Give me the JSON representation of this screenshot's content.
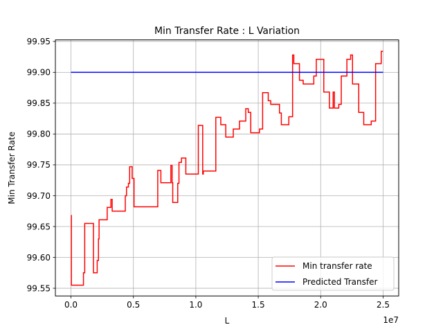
{
  "chart_data": {
    "type": "line",
    "title": "Min Transfer Rate : L Variation",
    "xlabel": "L",
    "ylabel": "Min Transfer Rate",
    "x_offset_label": "1e7",
    "xlim": [
      -1250000,
      26250000
    ],
    "ylim": [
      99.5375,
      99.9525
    ],
    "x_ticks": [
      0,
      5000000,
      10000000,
      15000000,
      20000000,
      25000000
    ],
    "x_tick_labels": [
      "0.0",
      "0.5",
      "1.0",
      "1.5",
      "2.0",
      "2.5"
    ],
    "y_ticks": [
      99.55,
      99.6,
      99.65,
      99.7,
      99.75,
      99.8,
      99.85,
      99.9,
      99.95
    ],
    "y_tick_labels": [
      "99.55",
      "99.60",
      "99.65",
      "99.70",
      "99.75",
      "99.80",
      "99.85",
      "99.90",
      "99.95"
    ],
    "grid": true,
    "legend_position": "lower right",
    "series": [
      {
        "name": "Min transfer rate",
        "color": "#ff0000",
        "step": true,
        "points": [
          [
            0,
            99.668
          ],
          [
            30000,
            99.555
          ],
          [
            1000000,
            99.575
          ],
          [
            1100000,
            99.655
          ],
          [
            1800000,
            99.575
          ],
          [
            2100000,
            99.595
          ],
          [
            2200000,
            99.63
          ],
          [
            2250000,
            99.661
          ],
          [
            2900000,
            99.681
          ],
          [
            3200000,
            99.694
          ],
          [
            3300000,
            99.675
          ],
          [
            4350000,
            99.7
          ],
          [
            4450000,
            99.714
          ],
          [
            4600000,
            99.72
          ],
          [
            4700000,
            99.747
          ],
          [
            4900000,
            99.728
          ],
          [
            5050000,
            99.682
          ],
          [
            6950000,
            99.741
          ],
          [
            7200000,
            99.721
          ],
          [
            8000000,
            99.749
          ],
          [
            8100000,
            99.721
          ],
          [
            8150000,
            99.689
          ],
          [
            8550000,
            99.72
          ],
          [
            8650000,
            99.754
          ],
          [
            8850000,
            99.761
          ],
          [
            9200000,
            99.735
          ],
          [
            10200000,
            99.814
          ],
          [
            10550000,
            99.735
          ],
          [
            10600000,
            99.74
          ],
          [
            11600000,
            99.827
          ],
          [
            12000000,
            99.815
          ],
          [
            12400000,
            99.795
          ],
          [
            13000000,
            99.808
          ],
          [
            13500000,
            99.821
          ],
          [
            14000000,
            99.841
          ],
          [
            14200000,
            99.835
          ],
          [
            14400000,
            99.802
          ],
          [
            15100000,
            99.808
          ],
          [
            15350000,
            99.867
          ],
          [
            15800000,
            99.854
          ],
          [
            16000000,
            99.848
          ],
          [
            16700000,
            99.834
          ],
          [
            16850000,
            99.815
          ],
          [
            17450000,
            99.828
          ],
          [
            17750000,
            99.928
          ],
          [
            17850000,
            99.914
          ],
          [
            18300000,
            99.887
          ],
          [
            18600000,
            99.881
          ],
          [
            19450000,
            99.894
          ],
          [
            19650000,
            99.921
          ],
          [
            20250000,
            99.868
          ],
          [
            20700000,
            99.842
          ],
          [
            21000000,
            99.868
          ],
          [
            21100000,
            99.842
          ],
          [
            21450000,
            99.848
          ],
          [
            21650000,
            99.894
          ],
          [
            22100000,
            99.921
          ],
          [
            22400000,
            99.928
          ],
          [
            22550000,
            99.881
          ],
          [
            23050000,
            99.835
          ],
          [
            23450000,
            99.815
          ],
          [
            24050000,
            99.821
          ],
          [
            24400000,
            99.914
          ],
          [
            24850000,
            99.934
          ],
          [
            25000000,
            99.934
          ]
        ]
      },
      {
        "name": "Predicted Transfer",
        "color": "#0000ff",
        "step": false,
        "points": [
          [
            0,
            99.9
          ],
          [
            25000000,
            99.9
          ]
        ]
      }
    ]
  }
}
